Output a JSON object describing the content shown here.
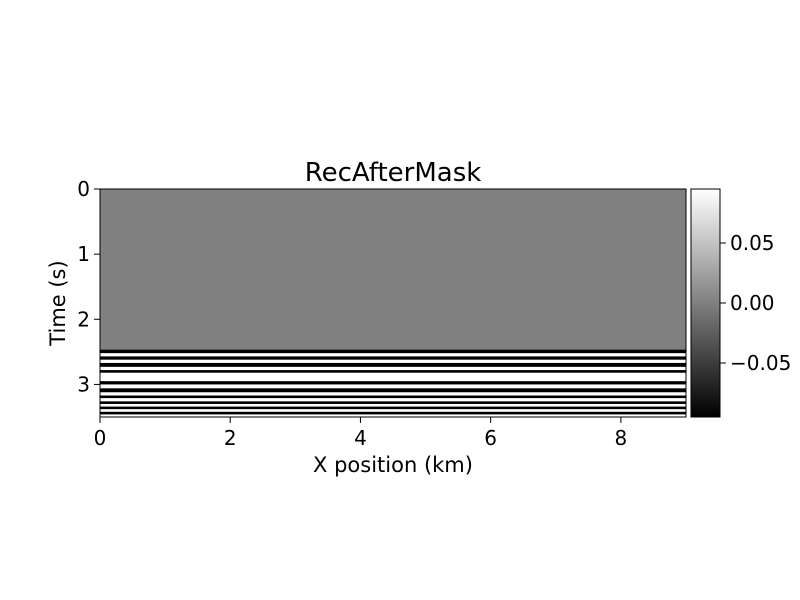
{
  "chart_data": {
    "type": "heatmap",
    "title": "RecAfterMask",
    "xlabel": "X position (km)",
    "ylabel": "Time (s)",
    "xlim": [
      0,
      9
    ],
    "ylim": [
      3.5,
      0
    ],
    "y_inverted": true,
    "x_ticks": [
      "0",
      "2",
      "4",
      "6",
      "8"
    ],
    "x_tick_values": [
      0,
      2,
      4,
      6,
      8
    ],
    "y_ticks": [
      "0",
      "1",
      "2",
      "3"
    ],
    "y_tick_values": [
      0,
      1,
      2,
      3
    ],
    "colormap": "gray",
    "colorbar": {
      "vmin": -0.095,
      "vmax": 0.095,
      "tick_values": [
        -0.05,
        0.0,
        0.05
      ],
      "tick_labels": [
        "−0.05",
        "0.00",
        "0.05"
      ]
    },
    "masked_region": {
      "time_range": [
        0,
        2.45
      ],
      "value": 0.0
    },
    "bands": [
      {
        "t0": 2.45,
        "t1": 2.47,
        "value": -0.02
      },
      {
        "t0": 2.47,
        "t1": 2.52,
        "value": -0.095
      },
      {
        "t0": 2.52,
        "t1": 2.57,
        "value": 0.095
      },
      {
        "t0": 2.57,
        "t1": 2.62,
        "value": -0.095
      },
      {
        "t0": 2.62,
        "t1": 2.67,
        "value": 0.095
      },
      {
        "t0": 2.67,
        "t1": 2.73,
        "value": -0.095
      },
      {
        "t0": 2.73,
        "t1": 2.78,
        "value": 0.095
      },
      {
        "t0": 2.78,
        "t1": 2.82,
        "value": -0.095
      },
      {
        "t0": 2.82,
        "t1": 2.88,
        "value": 0.095
      },
      {
        "t0": 2.88,
        "t1": 2.95,
        "value": 0.095
      },
      {
        "t0": 2.95,
        "t1": 3.0,
        "value": -0.095
      },
      {
        "t0": 3.0,
        "t1": 3.06,
        "value": 0.095
      },
      {
        "t0": 3.06,
        "t1": 3.12,
        "value": -0.095
      },
      {
        "t0": 3.12,
        "t1": 3.17,
        "value": 0.095
      },
      {
        "t0": 3.17,
        "t1": 3.21,
        "value": -0.095
      },
      {
        "t0": 3.21,
        "t1": 3.26,
        "value": 0.095
      },
      {
        "t0": 3.26,
        "t1": 3.3,
        "value": -0.095
      },
      {
        "t0": 3.3,
        "t1": 3.34,
        "value": 0.095
      },
      {
        "t0": 3.34,
        "t1": 3.38,
        "value": -0.095
      },
      {
        "t0": 3.38,
        "t1": 3.42,
        "value": 0.095
      },
      {
        "t0": 3.42,
        "t1": 3.46,
        "value": -0.095
      },
      {
        "t0": 3.46,
        "t1": 3.5,
        "value": 0.095
      }
    ]
  }
}
